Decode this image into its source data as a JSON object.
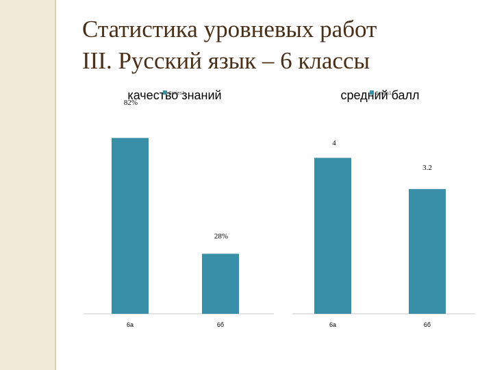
{
  "slide": {
    "title_line1": "Статистика уровневых работ",
    "title_line2": "III. Русский язык – 6 классы"
  },
  "colors": {
    "bar": "#3a8fa8",
    "title": "#4a2f18",
    "side_band": "#f0ebd8"
  },
  "chart_data": [
    {
      "type": "bar",
      "title": "качество знаний",
      "legend": "Series1",
      "categories": [
        "6а",
        "6б"
      ],
      "values": [
        82,
        28
      ],
      "labels": [
        "82%",
        "28%"
      ],
      "ylim": [
        0,
        100
      ],
      "grid": false
    },
    {
      "type": "bar",
      "title": "средний балл",
      "legend": "Series1",
      "categories": [
        "6а",
        "6б"
      ],
      "values": [
        4,
        3.2
      ],
      "labels": [
        "4",
        "3.2"
      ],
      "ylim": [
        0,
        5.5
      ],
      "grid": false
    }
  ]
}
